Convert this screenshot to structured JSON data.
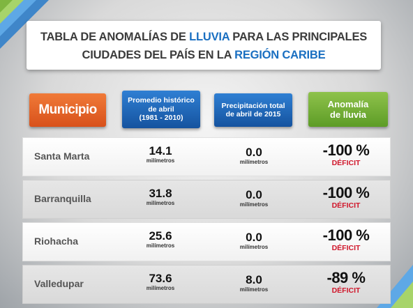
{
  "title": {
    "line1_a": "TABLA DE ANOMALÍAS DE ",
    "line1_hl": "LLUVIA",
    "line1_b": " PARA LAS PRINCIPALES",
    "line2_a": "CIUDADES DEL PAÍS EN LA ",
    "line2_hl": "REGIÓN CARIBE"
  },
  "headers": {
    "municipio": "Municipio",
    "promedio_1": "Promedio histórico",
    "promedio_2": "de abril",
    "promedio_3": "(1981 - 2010)",
    "precipitacion_1": "Precipitación total",
    "precipitacion_2": "de abril de 2015",
    "anomalia_1": "Anomalía",
    "anomalia_2": "de lluvia"
  },
  "colors": {
    "municipio_header": "#e2642a",
    "blue_header": "#1f66b5",
    "green_header": "#76b03a",
    "title_highlight": "#1a6fc1",
    "deficit": "#d0162a"
  },
  "chart_data": {
    "type": "table",
    "columns": [
      "Municipio",
      "Promedio histórico de abril (1981 - 2010)",
      "Precipitación total de abril de 2015",
      "Anomalía de lluvia"
    ],
    "rows": [
      {
        "municipio": "Santa Marta",
        "promedio": "14.1",
        "promedio_unit": "milímetros",
        "precipitacion": "0.0",
        "precipitacion_unit": "milímetros",
        "anomalia": "-100 %",
        "estado": "DÉFICIT"
      },
      {
        "municipio": "Barranquilla",
        "promedio": "31.8",
        "promedio_unit": "milímetros",
        "precipitacion": "0.0",
        "precipitacion_unit": "milímetros",
        "anomalia": "-100 %",
        "estado": "DÉFICIT"
      },
      {
        "municipio": "Riohacha",
        "promedio": "25.6",
        "promedio_unit": "milímetros",
        "precipitacion": "0.0",
        "precipitacion_unit": "milímetros",
        "anomalia": "-100 %",
        "estado": "DÉFICIT"
      },
      {
        "municipio": "Valledupar",
        "promedio": "73.6",
        "promedio_unit": "milímetros",
        "precipitacion": "8.0",
        "precipitacion_unit": "milímetros",
        "anomalia": "-89 %",
        "estado": "DÉFICIT"
      }
    ]
  }
}
